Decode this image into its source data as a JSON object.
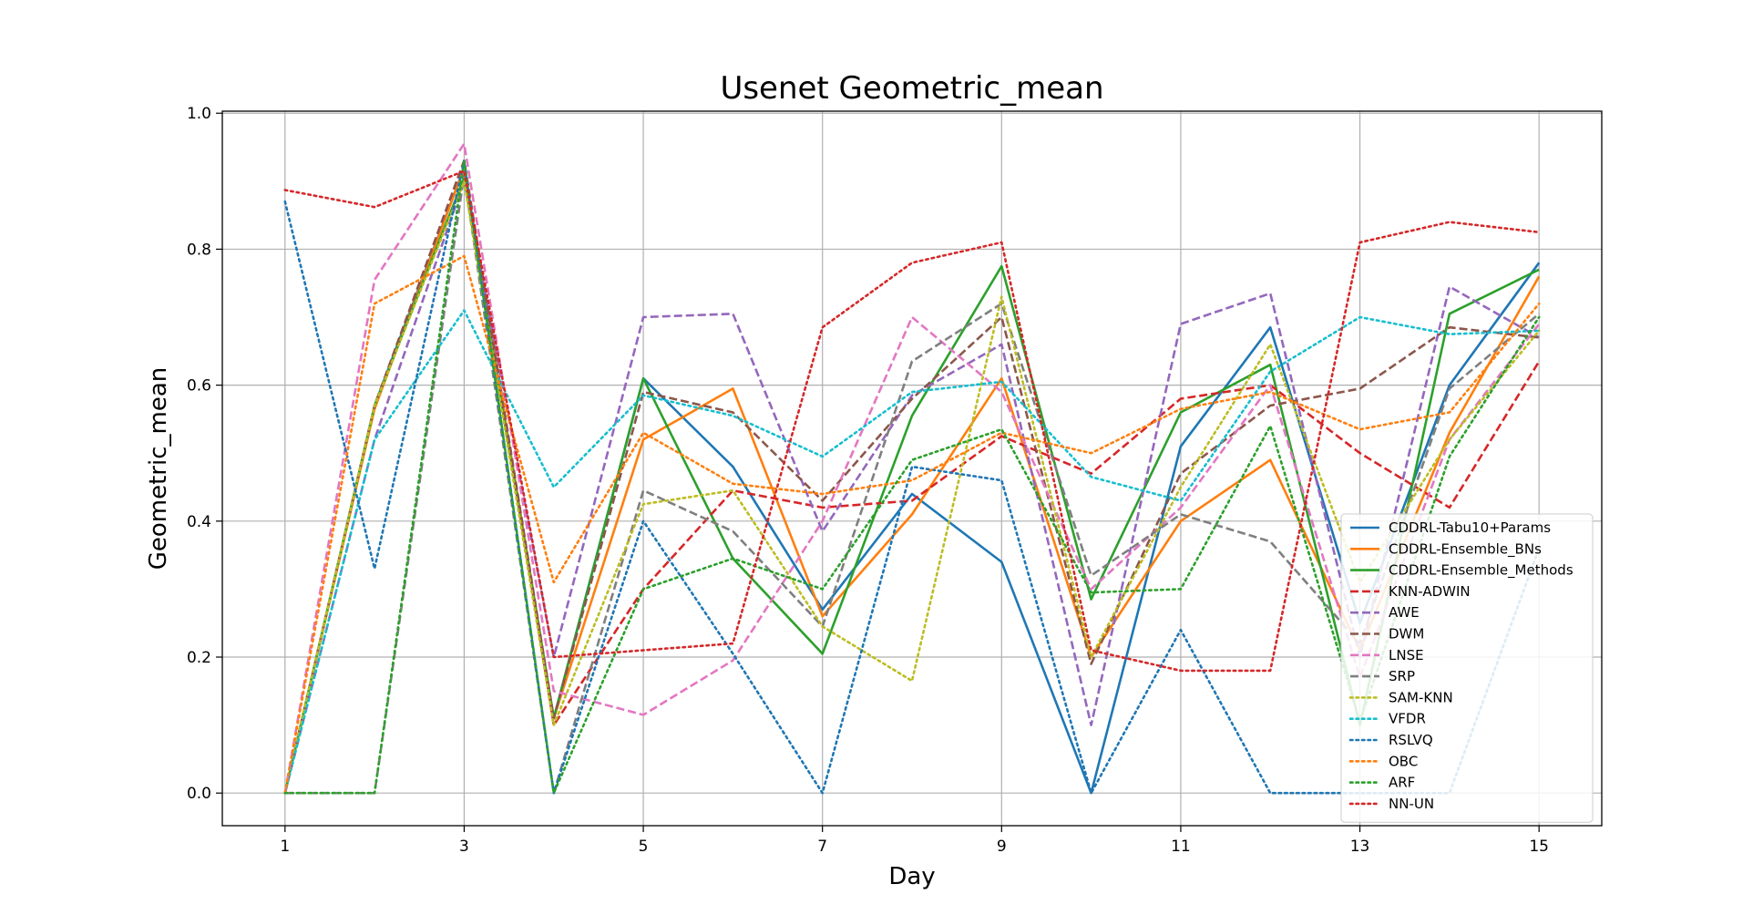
{
  "chart_data": {
    "type": "line",
    "title": "Usenet Geometric_mean",
    "xlabel": "Day",
    "ylabel": "Geometric_mean",
    "x": [
      1,
      2,
      3,
      4,
      5,
      6,
      7,
      8,
      9,
      10,
      11,
      12,
      13,
      14,
      15
    ],
    "xticks": [
      1,
      3,
      5,
      7,
      9,
      11,
      13,
      15
    ],
    "yticks": [
      0.0,
      0.2,
      0.4,
      0.6,
      0.8,
      1.0
    ],
    "xlim": [
      0.3,
      15.7
    ],
    "ylim": [
      -0.048,
      1.003
    ],
    "grid": true,
    "legend_position": "lower-right",
    "series": [
      {
        "name": "CDDRL-Tabu10+Params",
        "color": "#1f77b4",
        "dash": "solid",
        "values": [
          0.0,
          0.57,
          0.92,
          0.11,
          0.61,
          0.48,
          0.27,
          0.44,
          0.34,
          0.0,
          0.51,
          0.685,
          0.25,
          0.6,
          0.78
        ]
      },
      {
        "name": "CDDRL-Ensemble_BNs",
        "color": "#ff7f0e",
        "dash": "solid",
        "values": [
          0.0,
          0.565,
          0.92,
          0.11,
          0.52,
          0.595,
          0.26,
          0.41,
          0.61,
          0.2,
          0.4,
          0.49,
          0.21,
          0.53,
          0.76
        ]
      },
      {
        "name": "CDDRL-Ensemble_Methods",
        "color": "#2ca02c",
        "dash": "solid",
        "values": [
          0.0,
          0.57,
          0.905,
          0.11,
          0.61,
          0.345,
          0.205,
          0.555,
          0.775,
          0.285,
          0.56,
          0.63,
          0.1,
          0.705,
          0.77
        ]
      },
      {
        "name": "KNN-ADWIN",
        "color": "#d62728",
        "dash": "dashed",
        "values": [
          0.0,
          0.57,
          0.93,
          0.1,
          0.3,
          0.445,
          0.42,
          0.43,
          0.525,
          0.47,
          0.58,
          0.6,
          0.5,
          0.42,
          0.635
        ]
      },
      {
        "name": "AWE",
        "color": "#9467bd",
        "dash": "dashed",
        "values": [
          0.0,
          0.52,
          0.9,
          0.2,
          0.7,
          0.705,
          0.385,
          0.585,
          0.66,
          0.1,
          0.69,
          0.735,
          0.2,
          0.745,
          0.67
        ]
      },
      {
        "name": "DWM",
        "color": "#8c564b",
        "dash": "dashed",
        "values": [
          0.0,
          0.57,
          0.93,
          0.11,
          0.59,
          0.56,
          0.43,
          0.58,
          0.7,
          0.19,
          0.47,
          0.57,
          0.595,
          0.685,
          0.67
        ]
      },
      {
        "name": "LNSE",
        "color": "#e377c2",
        "dash": "dashed",
        "values": [
          0.0,
          0.755,
          0.955,
          0.15,
          0.115,
          0.195,
          0.4,
          0.7,
          0.59,
          0.3,
          0.42,
          0.6,
          0.17,
          0.52,
          0.69
        ]
      },
      {
        "name": "SRP",
        "color": "#7f7f7f",
        "dash": "dashed",
        "values": [
          0.0,
          0.0,
          0.91,
          0.0,
          0.445,
          0.385,
          0.245,
          0.635,
          0.72,
          0.32,
          0.41,
          0.37,
          0.22,
          0.595,
          0.705
        ]
      },
      {
        "name": "SAM-KNN",
        "color": "#bcbd22",
        "dash": "dotted",
        "values": [
          0.0,
          0.57,
          0.9,
          0.1,
          0.425,
          0.445,
          0.245,
          0.165,
          0.73,
          0.2,
          0.45,
          0.66,
          0.31,
          0.52,
          0.68
        ]
      },
      {
        "name": "VFDR",
        "color": "#17becf",
        "dash": "dotted",
        "values": [
          0.0,
          0.52,
          0.71,
          0.45,
          0.585,
          0.555,
          0.495,
          0.59,
          0.605,
          0.465,
          0.43,
          0.62,
          0.7,
          0.675,
          0.68
        ]
      },
      {
        "name": "RSLVQ",
        "color": "#1f77b4",
        "dash": "dotted",
        "values": [
          0.87,
          0.33,
          0.93,
          0.0,
          0.4,
          0.205,
          0.0,
          0.48,
          0.46,
          0.0,
          0.24,
          0.0,
          0.0,
          0.0,
          0.36
        ]
      },
      {
        "name": "OBC",
        "color": "#ff7f0e",
        "dash": "dotted",
        "values": [
          0.0,
          0.72,
          0.79,
          0.31,
          0.53,
          0.455,
          0.44,
          0.46,
          0.53,
          0.5,
          0.565,
          0.59,
          0.535,
          0.56,
          0.72
        ]
      },
      {
        "name": "ARF",
        "color": "#2ca02c",
        "dash": "dotted",
        "values": [
          0.0,
          0.0,
          0.93,
          0.0,
          0.3,
          0.345,
          0.3,
          0.49,
          0.535,
          0.295,
          0.3,
          0.54,
          0.105,
          0.495,
          0.7
        ]
      },
      {
        "name": "NN-UN",
        "color": "#d62728",
        "dash": "dotted",
        "values": [
          0.887,
          0.862,
          0.915,
          0.2,
          0.21,
          0.22,
          0.685,
          0.78,
          0.81,
          0.21,
          0.18,
          0.18,
          0.81,
          0.84,
          0.825
        ]
      }
    ]
  }
}
